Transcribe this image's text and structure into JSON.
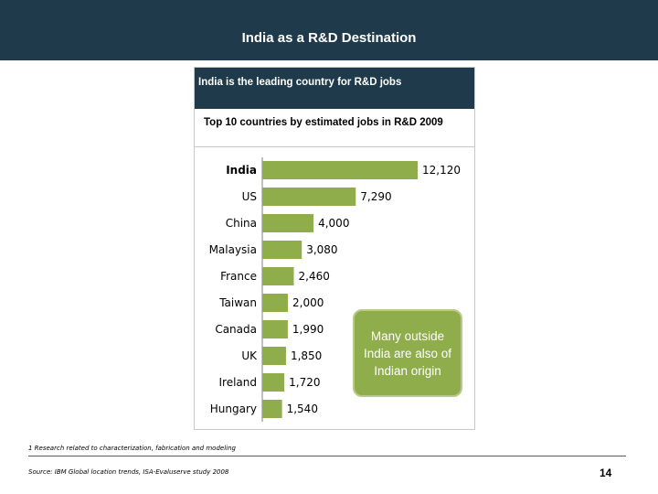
{
  "page": {
    "title": "India as a R&D Destination",
    "page_number": "14"
  },
  "panel": {
    "header": "India is the leading country for R&D jobs"
  },
  "chart_data": {
    "type": "bar",
    "orientation": "horizontal",
    "title": "Top 10 countries by estimated jobs in R&D 2009",
    "categories": [
      "India",
      "US",
      "China",
      "Malaysia",
      "France",
      "Taiwan",
      "Canada",
      "UK",
      "Ireland",
      "Hungary"
    ],
    "values": [
      12120,
      7290,
      4000,
      3080,
      2460,
      2000,
      1990,
      1850,
      1720,
      1540
    ],
    "data_labels": [
      "12,120",
      "7,290",
      "4,000",
      "3,080",
      "2,460",
      "2,000",
      "1,990",
      "1,850",
      "1,720",
      "1,540"
    ],
    "highlight_category": "India",
    "bar_color": "#8fae4b",
    "xlim": [
      0,
      12120
    ],
    "xlabel": "",
    "ylabel": "",
    "grid": false,
    "legend": "none"
  },
  "callout": {
    "text": "Many outside India are also of Indian origin",
    "color": "#8fae4b"
  },
  "footnote": "1 Research related to characterization, fabrication and modeling",
  "source": "Source: IBM Global location trends, ISA-Evaluserve study 2008",
  "colors": {
    "header": "#1f3b4b",
    "bar": "#8fae4b"
  }
}
